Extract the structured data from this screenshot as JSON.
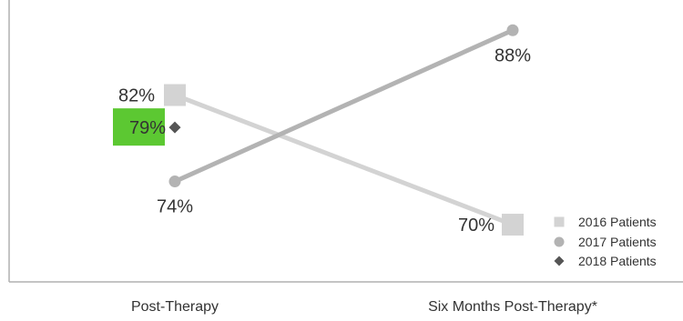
{
  "chart_data": {
    "type": "line",
    "categories": [
      "Post-Therapy",
      "Six Months Post-Therapy*"
    ],
    "series": [
      {
        "name": "2016 Patients",
        "values": [
          82,
          70
        ],
        "labels": [
          "82%",
          "70%"
        ],
        "marker": "square",
        "color": "#d3d3d3"
      },
      {
        "name": "2017 Patients",
        "values": [
          74,
          88
        ],
        "labels": [
          "74%",
          "88%"
        ],
        "marker": "circle",
        "color": "#b3b3b3"
      },
      {
        "name": "2018 Patients",
        "values": [
          79,
          null
        ],
        "labels": [
          "79%",
          null
        ],
        "marker": "diamond",
        "color": "#555555"
      }
    ],
    "highlight_color": "#5cc832",
    "ylim": [
      64.7,
      90.8
    ],
    "title": "",
    "xlabel": "",
    "ylabel": "",
    "legend_position": "bottom-right",
    "grid": false
  }
}
